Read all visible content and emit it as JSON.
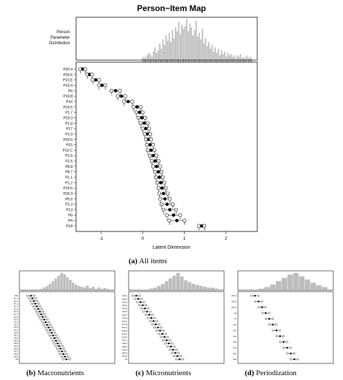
{
  "main": {
    "title": "Person−Item Map",
    "dist_label": [
      "Person",
      "Parameter",
      "Distribution"
    ],
    "xlabel": "Latent Dimension",
    "xticks": [
      "-1",
      "0",
      "1",
      "2"
    ],
    "caption_letter": "(a)",
    "caption_text": " All items"
  },
  "chart_data": [
    {
      "type": "scatter",
      "title": "Person−Item Map",
      "xlabel": "Latent Dimension",
      "xlim": [
        -1.6,
        2.75
      ],
      "items": [
        "P20.4",
        "P20.6",
        "P10.E",
        "P19.4",
        "P6",
        "P19.8",
        "P16",
        "P19.5",
        "P1.7",
        "P19.3",
        "P1.8",
        "P17",
        "P1.9",
        "P20.5",
        "P15",
        "P10.C",
        "P1.6",
        "P1.5",
        "P8.8",
        "P8.7",
        "P1.1",
        "P1.2",
        "P19.6",
        "P20.3",
        "P5.5",
        "P1.3",
        "P13",
        "P9",
        "P4",
        "P18"
      ],
      "threshold_1": [
        -1.5,
        -1.33,
        -1.2,
        -1.05,
        -0.75,
        -0.6,
        -0.45,
        -0.22,
        -0.15,
        -0.1,
        -0.05,
        0.0,
        0.05,
        0.08,
        0.1,
        0.12,
        0.17,
        0.22,
        0.25,
        0.3,
        0.32,
        0.35,
        0.38,
        0.4,
        0.42,
        0.45,
        0.5,
        0.58,
        0.64,
        1.35
      ],
      "threshold_2": [
        -1.38,
        -1.22,
        -1.05,
        -0.9,
        -0.55,
        -0.42,
        -0.25,
        -0.05,
        0.0,
        0.06,
        0.12,
        0.15,
        0.18,
        0.2,
        0.25,
        0.28,
        0.33,
        0.38,
        0.42,
        0.45,
        0.48,
        0.52,
        0.55,
        0.6,
        0.65,
        0.72,
        0.8,
        0.9,
        1.0,
        1.48
      ],
      "distribution_counts": [
        1,
        2,
        1,
        3,
        5,
        4,
        2,
        6,
        9,
        5,
        7,
        12,
        8,
        15,
        11,
        18,
        14,
        20,
        13,
        22,
        16,
        24,
        21,
        28,
        19,
        26,
        23,
        25,
        30,
        21,
        27,
        24,
        18,
        22,
        29,
        17,
        20,
        15,
        23,
        12,
        16,
        10,
        13,
        8,
        11,
        6,
        9,
        5,
        8,
        3,
        7,
        4,
        6,
        2,
        5,
        3,
        4,
        2,
        3,
        1,
        3,
        2,
        4,
        1,
        2,
        1,
        3,
        1,
        2,
        1
      ]
    },
    {
      "type": "scatter",
      "caption": "Macronutrients",
      "items": [
        "P20",
        "P1.1",
        "P1.2",
        "P1.3",
        "P1.4",
        "P1.5",
        "P1.6",
        "P1.7",
        "P1.8",
        "P1.9",
        "P5.1",
        "P5.2",
        "P5.3",
        "P5.4",
        "P5.5",
        "P8.1",
        "P8.2",
        "P8.3",
        "P8.4",
        "P8.5",
        "P8.6",
        "P8.7",
        "P8.8",
        "P8.9",
        "P9"
      ]
    },
    {
      "type": "scatter",
      "caption": "Micronutrients",
      "items": [
        "P19.1",
        "P19.2",
        "P19.3",
        "P19.4",
        "P19.5",
        "P19.6",
        "P19.7",
        "P19.8",
        "P10.A",
        "P10.B",
        "P10.C",
        "P10.D",
        "P10.E",
        "P10.F",
        "P20.1",
        "P20.2",
        "P20.3",
        "P20.4",
        "P20.5",
        "P20.6",
        "P4"
      ]
    },
    {
      "type": "scatter",
      "caption": "Periodization",
      "items": [
        "P14.1",
        "P14.2",
        "P14.3",
        "P6",
        "P7",
        "P11",
        "P12",
        "P13",
        "P15",
        "P16",
        "P17",
        "P18"
      ]
    }
  ],
  "sub_b": {
    "caption_letter": "(b)",
    "caption_text": " Macronutrients"
  },
  "sub_c": {
    "caption_letter": "(c)",
    "caption_text": " Micronutrients"
  },
  "sub_d": {
    "caption_letter": "(d)",
    "caption_text": " Periodization"
  }
}
